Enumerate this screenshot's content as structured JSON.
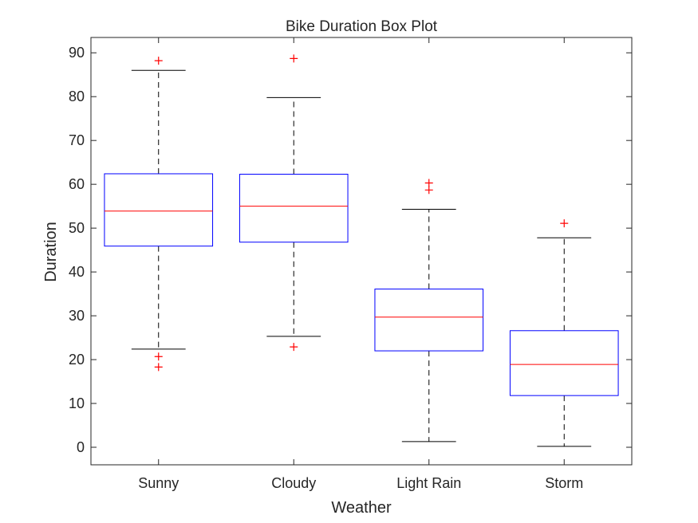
{
  "chart_data": {
    "type": "box",
    "title": "Bike Duration Box Plot",
    "xlabel": "Weather",
    "ylabel": "Duration",
    "categories": [
      "Sunny",
      "Cloudy",
      "Light Rain",
      "Storm"
    ],
    "ylim": [
      -4,
      93.5
    ],
    "yticks": [
      0,
      10,
      20,
      30,
      40,
      50,
      60,
      70,
      80,
      90
    ],
    "grid": false,
    "boxes": [
      {
        "category": "Sunny",
        "whisker_low": 22.4,
        "q1": 45.9,
        "median": 53.9,
        "q3": 62.4,
        "whisker_high": 86.0,
        "outliers": [
          20.7,
          18.3,
          88.2
        ]
      },
      {
        "category": "Cloudy",
        "whisker_low": 25.3,
        "q1": 46.8,
        "median": 55.0,
        "q3": 62.3,
        "whisker_high": 79.8,
        "outliers": [
          22.9,
          88.7
        ]
      },
      {
        "category": "Light Rain",
        "whisker_low": 1.3,
        "q1": 22.0,
        "median": 29.7,
        "q3": 36.1,
        "whisker_high": 54.3,
        "outliers": [
          58.7,
          60.3
        ]
      },
      {
        "category": "Storm",
        "whisker_low": 0.2,
        "q1": 11.8,
        "median": 18.9,
        "q3": 26.6,
        "whisker_high": 47.8,
        "outliers": [
          51.1
        ]
      }
    ],
    "colors": {
      "box": "#0000ff",
      "median": "#ff0000",
      "outlier": "#ff0000",
      "whisker": "#000000",
      "axes": "#262626"
    }
  }
}
